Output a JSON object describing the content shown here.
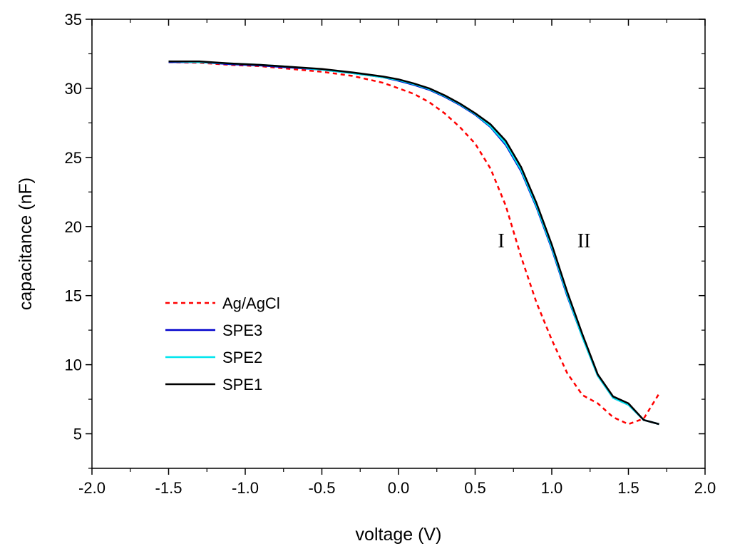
{
  "chart_data": {
    "type": "line",
    "title": "",
    "xlabel": "voltage (V)",
    "ylabel": "capacitance (nF)",
    "xlim": [
      -2.0,
      2.0
    ],
    "ylim": [
      2.5,
      35
    ],
    "xticks": [
      -2.0,
      -1.5,
      -1.0,
      -0.5,
      0.0,
      0.5,
      1.0,
      1.5,
      2.0
    ],
    "xtick_labels": [
      "-2.0",
      "-1.5",
      "-1.0",
      "-0.5",
      "0.0",
      "0.5",
      "1.0",
      "1.5",
      "2.0"
    ],
    "yticks": [
      5,
      10,
      15,
      20,
      25,
      30,
      35
    ],
    "ytick_labels": [
      "5",
      "10",
      "15",
      "20",
      "25",
      "30",
      "35"
    ],
    "grid": false,
    "legend_position": "lower-left",
    "series": [
      {
        "name": "Ag/AgCl",
        "color": "#ff0000",
        "dash": "dashed",
        "x": [
          -1.5,
          -1.3,
          -1.1,
          -0.9,
          -0.7,
          -0.5,
          -0.3,
          -0.1,
          0.0,
          0.1,
          0.2,
          0.3,
          0.4,
          0.5,
          0.6,
          0.7,
          0.8,
          0.9,
          1.0,
          1.1,
          1.2,
          1.3,
          1.4,
          1.5,
          1.6,
          1.7
        ],
        "y": [
          31.9,
          31.85,
          31.7,
          31.6,
          31.4,
          31.2,
          30.9,
          30.4,
          30.0,
          29.6,
          29.0,
          28.2,
          27.2,
          26.0,
          24.2,
          21.5,
          17.8,
          14.5,
          11.8,
          9.4,
          7.8,
          7.2,
          6.2,
          5.7,
          6.1,
          7.9
        ]
      },
      {
        "name": "SPE3",
        "color": "#0000cc",
        "dash": "solid",
        "x": [
          -1.5,
          -1.3,
          -1.1,
          -0.9,
          -0.7,
          -0.5,
          -0.3,
          -0.1,
          0.0,
          0.1,
          0.2,
          0.3,
          0.4,
          0.5,
          0.6,
          0.7,
          0.8,
          0.9,
          1.0,
          1.1,
          1.2,
          1.3,
          1.4,
          1.5,
          1.6,
          1.7
        ],
        "y": [
          31.9,
          31.9,
          31.75,
          31.65,
          31.5,
          31.35,
          31.1,
          30.8,
          30.55,
          30.25,
          29.9,
          29.4,
          28.8,
          28.1,
          27.2,
          25.9,
          24.0,
          21.4,
          18.4,
          15.0,
          12.0,
          9.2,
          7.6,
          7.1,
          6.0,
          5.7
        ]
      },
      {
        "name": "SPE2",
        "color": "#00e5ee",
        "dash": "solid",
        "x": [
          -1.5,
          -1.3,
          -1.1,
          -0.9,
          -0.7,
          -0.5,
          -0.3,
          -0.1,
          0.0,
          0.1,
          0.2,
          0.3,
          0.4,
          0.5,
          0.6,
          0.7,
          0.8,
          0.9,
          1.0,
          1.1,
          1.2,
          1.3,
          1.4,
          1.5,
          1.6,
          1.7
        ],
        "y": [
          31.95,
          31.9,
          31.8,
          31.7,
          31.55,
          31.35,
          31.1,
          30.8,
          30.6,
          30.3,
          29.95,
          29.45,
          28.85,
          28.15,
          27.25,
          26.0,
          24.1,
          21.5,
          18.5,
          15.1,
          12.0,
          9.2,
          7.6,
          7.1,
          6.0,
          5.7
        ]
      },
      {
        "name": "SPE1",
        "color": "#000000",
        "dash": "solid",
        "x": [
          -1.5,
          -1.3,
          -1.1,
          -0.9,
          -0.7,
          -0.5,
          -0.3,
          -0.1,
          0.0,
          0.1,
          0.2,
          0.3,
          0.4,
          0.5,
          0.6,
          0.7,
          0.8,
          0.9,
          1.0,
          1.1,
          1.2,
          1.3,
          1.4,
          1.5,
          1.6,
          1.7
        ],
        "y": [
          31.95,
          31.95,
          31.8,
          31.7,
          31.55,
          31.4,
          31.15,
          30.85,
          30.65,
          30.35,
          30.0,
          29.5,
          28.9,
          28.2,
          27.4,
          26.2,
          24.3,
          21.7,
          18.7,
          15.3,
          12.2,
          9.3,
          7.7,
          7.2,
          6.0,
          5.7
        ]
      }
    ],
    "annotations": [
      {
        "text": "I",
        "x": 0.67,
        "y": 18.5
      },
      {
        "text": "II",
        "x": 1.21,
        "y": 18.5
      }
    ]
  }
}
